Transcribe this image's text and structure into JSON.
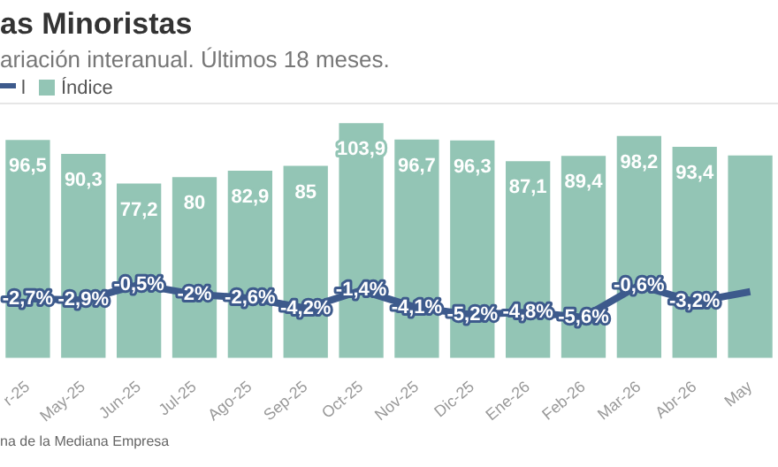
{
  "chart_data": {
    "type": "bar",
    "title": "as Minoristas",
    "subtitle": "ariación interanual. Últimos 18 meses.",
    "categories": [
      "r-25",
      "May-25",
      "Jun-25",
      "Jul-25",
      "Ago-25",
      "Sep-25",
      "Oct-25",
      "Nov-25",
      "Dic-25",
      "Ene-26",
      "Feb-26",
      "Mar-26",
      "Abr-26",
      "May"
    ],
    "series": [
      {
        "name": "l",
        "type": "line",
        "axis": "y2",
        "color": "#3d5a8c",
        "values": [
          -2.7,
          -2.9,
          -0.5,
          -2,
          -2.6,
          -4.2,
          -1.4,
          -4.1,
          -5.2,
          -4.8,
          -5.6,
          -0.6,
          -3.2,
          -1.6
        ],
        "value_labels": [
          "-2,7%",
          "-2,9%",
          "-0,5%",
          "-2%",
          "-2,6%",
          "-4,2%",
          "-1,4%",
          "-4,1%",
          "-5,2%",
          "-4,8%",
          "-5,6%",
          "-0,6%",
          "-3,2%",
          null
        ]
      },
      {
        "name": "Índice",
        "color": "#93c5b5",
        "values": [
          96.5,
          90.3,
          77.2,
          80,
          82.9,
          85,
          103.9,
          96.7,
          96.3,
          87.1,
          89.4,
          98.2,
          93.4,
          89.6
        ],
        "value_labels": [
          "96,5",
          "90,3",
          "77,2",
          "80",
          "82,9",
          "85",
          "103,9",
          "96,7",
          "96,3",
          "87,1",
          "89,4",
          "98,2",
          "93,4",
          null
        ]
      }
    ],
    "ylim": [
      0,
      113
    ],
    "y2lim": [
      -12,
      28
    ],
    "tick_labels": "x",
    "legend": "top left",
    "annotations": [
      "na de la Mediana Empresa"
    ]
  }
}
